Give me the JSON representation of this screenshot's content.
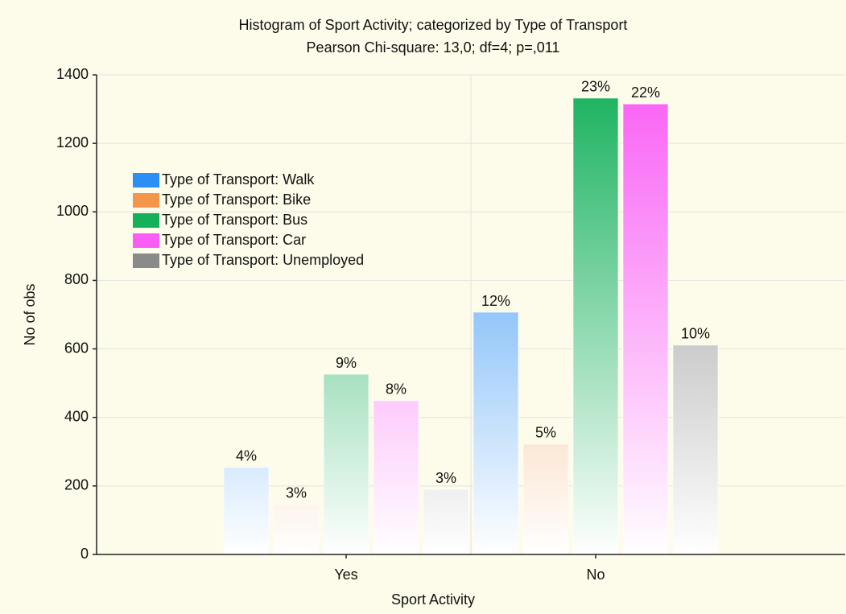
{
  "chart_data": {
    "type": "bar",
    "title": "Histogram of Sport Activity; categorized by Type of Transport",
    "subtitle": "Pearson Chi-square: 13,0; df=4; p=,011",
    "x_label": "Sport Activity",
    "y_label": "No of obs",
    "categories": [
      "Yes",
      "No"
    ],
    "series": [
      {
        "name": "Type of Transport: Walk",
        "color": "#2b8ff5",
        "values": [
          254,
          707
        ],
        "percent_labels": [
          "4%",
          "12%"
        ]
      },
      {
        "name": "Type of Transport: Bike",
        "color": "#f3964a",
        "values": [
          146,
          322
        ],
        "percent_labels": [
          "3%",
          "5%"
        ]
      },
      {
        "name": "Type of Transport: Bus",
        "color": "#14b05a",
        "values": [
          526,
          1332
        ],
        "percent_labels": [
          "9%",
          "23%"
        ]
      },
      {
        "name": "Type of Transport: Car",
        "color": "#f95df5",
        "values": [
          449,
          1315
        ],
        "percent_labels": [
          "8%",
          "22%"
        ]
      },
      {
        "name": "Type of Transport: Unemployed",
        "color": "#8a8a8a",
        "values": [
          190,
          611
        ],
        "percent_labels": [
          "3%",
          "10%"
        ]
      }
    ],
    "ylim": [
      0,
      1400
    ],
    "yticks": [
      0,
      200,
      400,
      600,
      800,
      1000,
      1200,
      1400
    ],
    "grid": true,
    "legend": "upper left"
  }
}
